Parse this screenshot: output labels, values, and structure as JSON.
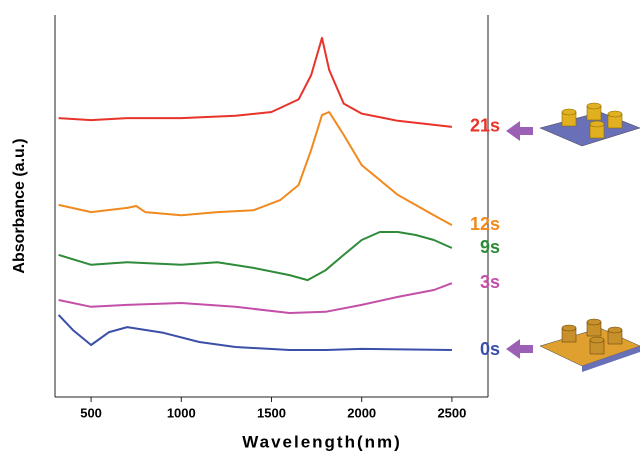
{
  "chart_data": {
    "type": "line",
    "xlabel": "Wavelength(nm)",
    "ylabel": "Absorbance (a.u.)",
    "xlim": [
      300,
      2700
    ],
    "ylim": [
      0,
      100
    ],
    "xticks": [
      500,
      1000,
      1500,
      2000,
      2500
    ],
    "series": [
      {
        "name": "21s",
        "color": "#e8332a",
        "x": [
          320,
          500,
          700,
          1000,
          1300,
          1500,
          1650,
          1720,
          1780,
          1820,
          1900,
          2000,
          2200,
          2500
        ],
        "values": [
          73.0,
          72.5,
          73.0,
          73.0,
          73.6,
          74.6,
          77.9,
          84.3,
          94.0,
          85.6,
          76.8,
          74.2,
          72.3,
          70.7
        ]
      },
      {
        "name": "12s",
        "color": "#f08a1e",
        "x": [
          320,
          500,
          700,
          750,
          800,
          1000,
          1200,
          1400,
          1550,
          1650,
          1720,
          1780,
          1820,
          1900,
          2000,
          2200,
          2400,
          2500
        ],
        "values": [
          50.3,
          48.4,
          49.5,
          50.0,
          48.4,
          47.6,
          48.4,
          48.9,
          51.6,
          55.5,
          64.7,
          73.8,
          74.6,
          68.6,
          60.7,
          52.9,
          47.6,
          45.0
        ]
      },
      {
        "name": "9s",
        "color": "#2e8b3a",
        "x": [
          320,
          500,
          700,
          1000,
          1200,
          1400,
          1600,
          1700,
          1800,
          1900,
          2000,
          2100,
          2200,
          2300,
          2400,
          2500
        ],
        "values": [
          37.2,
          34.6,
          35.3,
          34.6,
          35.3,
          33.8,
          31.9,
          30.6,
          33.2,
          37.2,
          41.1,
          43.2,
          43.2,
          42.4,
          41.1,
          39.0
        ]
      },
      {
        "name": "3s",
        "color": "#c34fa8",
        "x": [
          320,
          500,
          700,
          1000,
          1300,
          1600,
          1800,
          2000,
          2200,
          2400,
          2500
        ],
        "values": [
          25.4,
          23.6,
          24.1,
          24.6,
          23.6,
          22.0,
          22.3,
          24.1,
          26.2,
          28.0,
          29.8
        ]
      },
      {
        "name": "0s",
        "color": "#3a4fa8",
        "x": [
          320,
          400,
          500,
          600,
          700,
          900,
          1100,
          1300,
          1600,
          1800,
          2000,
          2500
        ],
        "values": [
          21.5,
          17.5,
          13.6,
          17.0,
          18.3,
          16.8,
          14.4,
          13.1,
          12.3,
          12.3,
          12.6,
          12.3
        ]
      }
    ]
  }
}
